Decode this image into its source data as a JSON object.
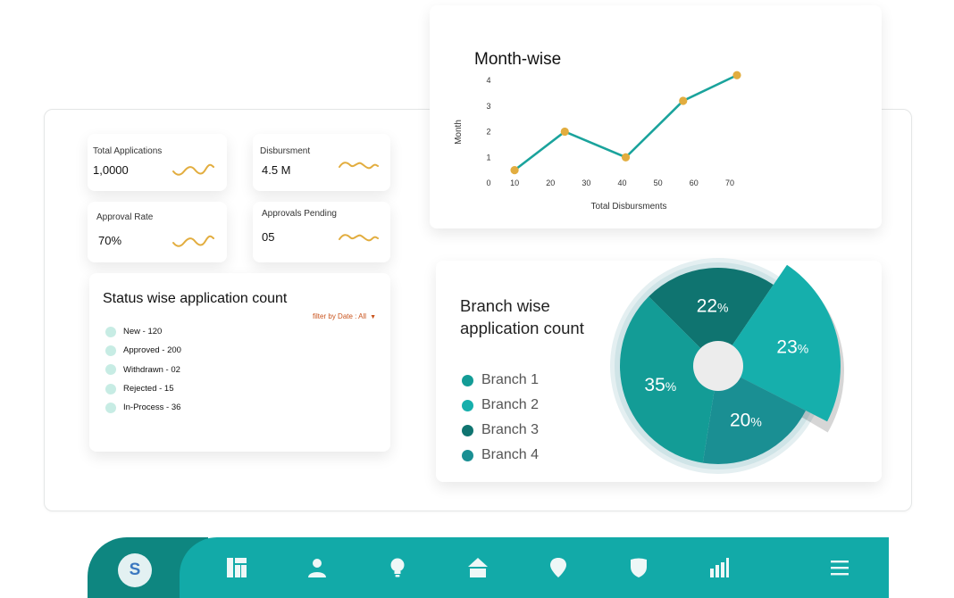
{
  "stats": [
    {
      "label": "Total Applications",
      "value": "1,0000"
    },
    {
      "label": "Disbursment",
      "value": "4.5 M"
    },
    {
      "label": "Approval Rate",
      "value": "70%"
    },
    {
      "label": "Approvals Pending",
      "value": "05"
    }
  ],
  "status": {
    "title": "Status wise application count",
    "filter_label": "filter by Date : All",
    "items": [
      "New - 120",
      "Approved - 200",
      "Withdrawn - 02",
      "Rejected - 15",
      "In-Process - 36"
    ]
  },
  "line_chart_title": "Month-wise",
  "branch": {
    "title_line1": "Branch wise",
    "title_line2": "application count"
  },
  "chart_data": [
    {
      "type": "line",
      "title": "Month-wise",
      "xlabel": "Total Disbursments",
      "ylabel": "Month",
      "x_ticks": [
        10,
        20,
        30,
        40,
        50,
        60,
        70
      ],
      "y_ticks": [
        0,
        1,
        2,
        3,
        4
      ],
      "xlim": [
        5,
        73
      ],
      "ylim": [
        0,
        4
      ],
      "grid": false,
      "series": [
        {
          "x": [
            10,
            24,
            41,
            57,
            72
          ],
          "y": [
            0.5,
            2,
            1,
            3.2,
            4.2
          ],
          "color": "#1aa39c",
          "marker_color": "#e2ad3f"
        }
      ]
    },
    {
      "type": "pie",
      "title": "Branch wise application count",
      "labels": [
        "Branch 1",
        "Branch 2",
        "Branch 3",
        "Branch 4"
      ],
      "values": [
        35,
        23,
        22,
        20
      ],
      "value_suffix": "%",
      "colors": [
        "#139c96",
        "#16afac",
        "#0f7470",
        "#1a8f93"
      ],
      "legend_position": "left"
    }
  ],
  "nav": {
    "avatar_letter": "S",
    "icons": [
      "dashboard-icon",
      "user-icon",
      "lightbulb-icon",
      "home-icon",
      "location-pin-icon",
      "shield-icon",
      "bar-chart-icon",
      "menu-icon"
    ]
  },
  "colors": {
    "teal": "#12aaa8",
    "teal_dark": "#0e8680",
    "accent_gold": "#e2ad3f",
    "filter_orange": "#c9531c"
  }
}
